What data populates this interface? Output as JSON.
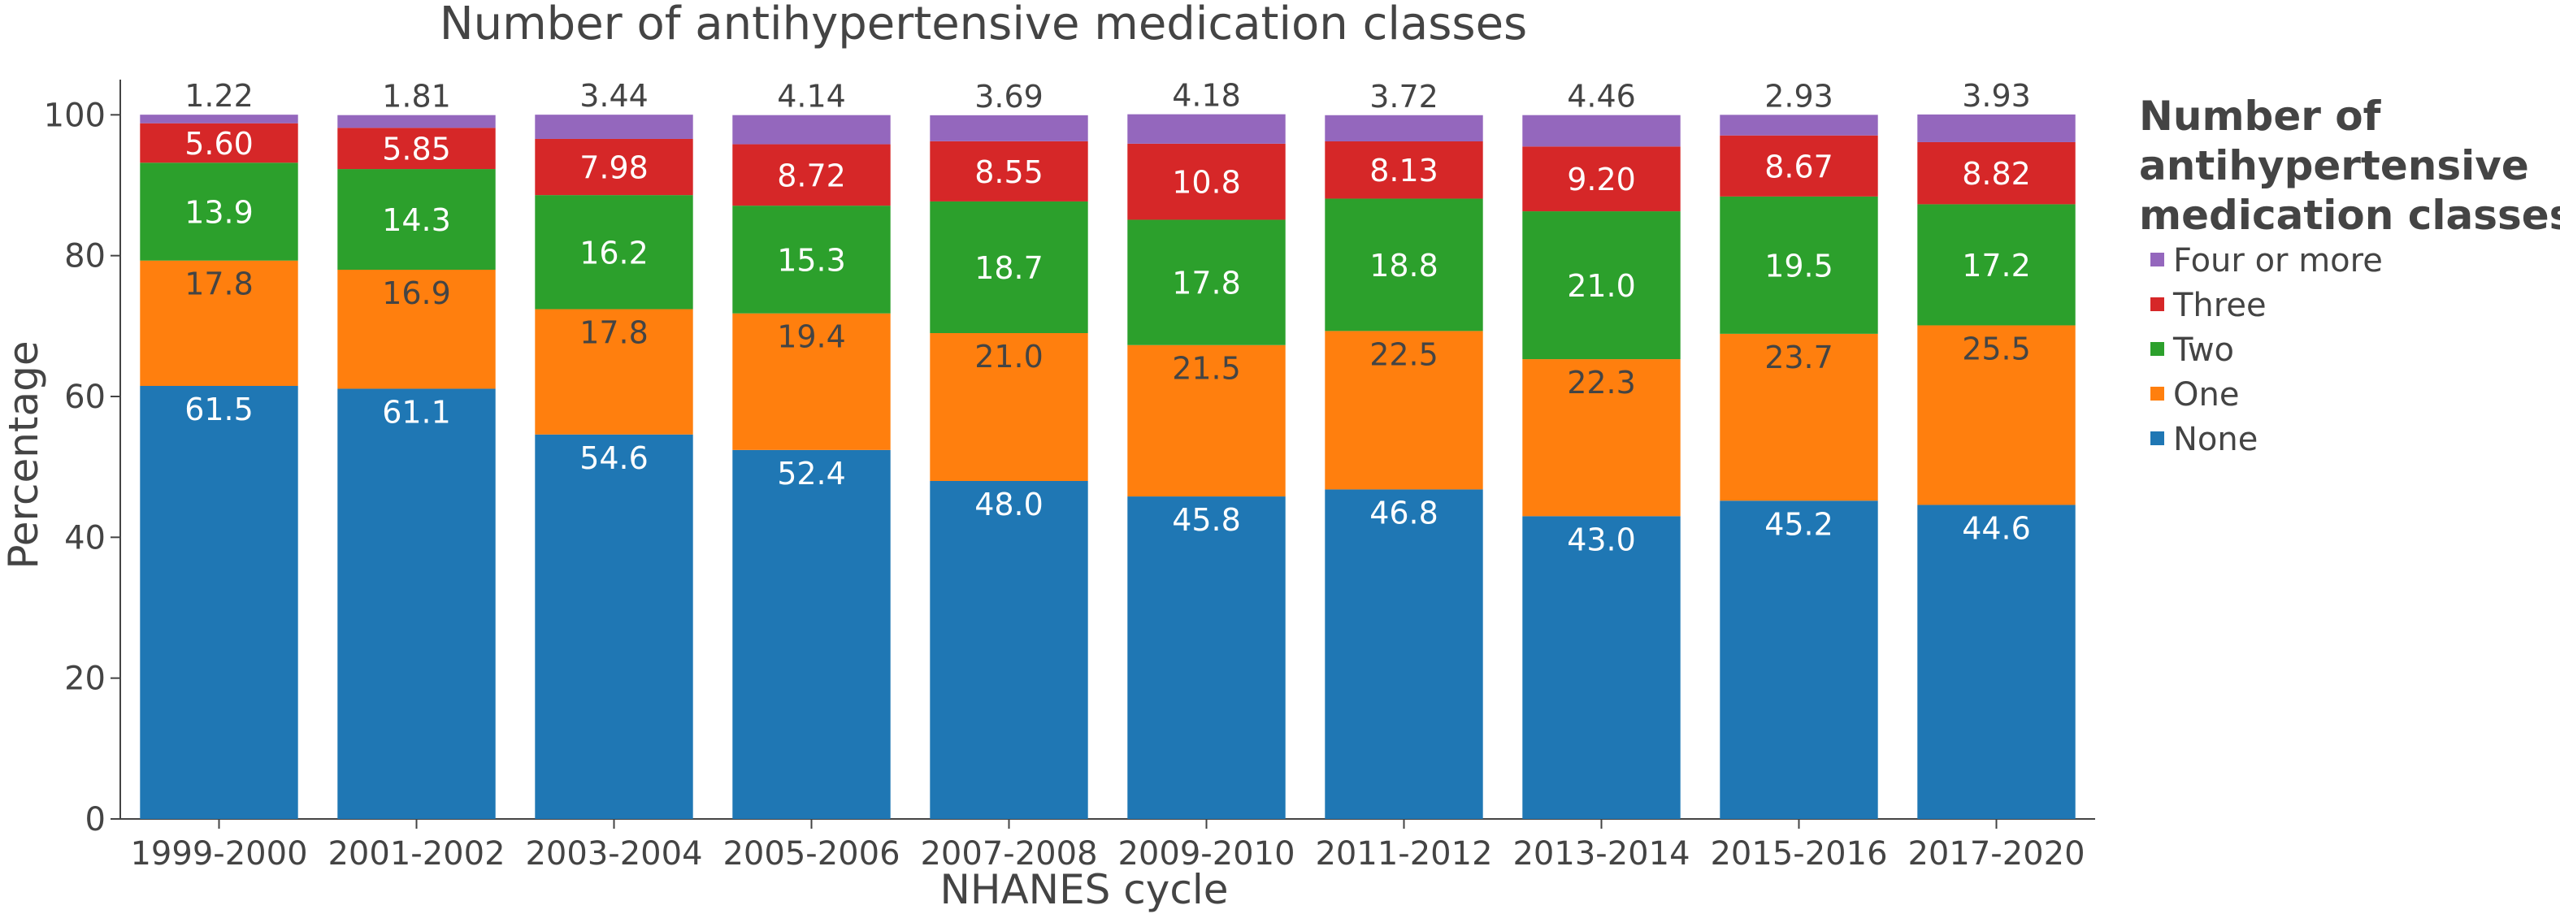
{
  "chart_data": {
    "type": "bar",
    "stacked": true,
    "title": "Number of antihypertensive medication classes",
    "xlabel": "NHANES cycle",
    "ylabel": "Percentage",
    "ylim": [
      0,
      105
    ],
    "yticks": [
      0,
      20,
      40,
      60,
      80,
      100
    ],
    "grid": false,
    "legend_position": "right",
    "legend_title": [
      "Number of",
      "antihypertensive",
      "medication classes"
    ],
    "categories": [
      "1999-2000",
      "2001-2002",
      "2003-2004",
      "2005-2006",
      "2007-2008",
      "2009-2010",
      "2011-2012",
      "2013-2014",
      "2015-2016",
      "2017-2020"
    ],
    "series": [
      {
        "name": "None",
        "color": "#1f77b4",
        "label_color": "#ffffff",
        "values": [
          61.5,
          61.1,
          54.6,
          52.4,
          48.0,
          45.8,
          46.8,
          43.0,
          45.2,
          44.6
        ],
        "labels": [
          "61.5",
          "61.1",
          "54.6",
          "52.4",
          "48.0",
          "45.8",
          "46.8",
          "43.0",
          "45.2",
          "44.6"
        ]
      },
      {
        "name": "One",
        "color": "#ff7f0e",
        "label_color": "#444444",
        "values": [
          17.8,
          16.9,
          17.8,
          19.4,
          21.0,
          21.5,
          22.5,
          22.3,
          23.7,
          25.5
        ],
        "labels": [
          "17.8",
          "16.9",
          "17.8",
          "19.4",
          "21.0",
          "21.5",
          "22.5",
          "22.3",
          "23.7",
          "25.5"
        ]
      },
      {
        "name": "Two",
        "color": "#2ca02c",
        "label_color": "#ffffff",
        "values": [
          13.9,
          14.3,
          16.2,
          15.3,
          18.7,
          17.8,
          18.8,
          21.0,
          19.5,
          17.2
        ],
        "labels": [
          "13.9",
          "14.3",
          "16.2",
          "15.3",
          "18.7",
          "17.8",
          "18.8",
          "21.0",
          "19.5",
          "17.2"
        ]
      },
      {
        "name": "Three",
        "color": "#d62728",
        "label_color": "#ffffff",
        "values": [
          5.6,
          5.85,
          7.98,
          8.72,
          8.55,
          10.8,
          8.13,
          9.2,
          8.67,
          8.82
        ],
        "labels": [
          "5.60",
          "5.85",
          "7.98",
          "8.72",
          "8.55",
          "10.8",
          "8.13",
          "9.20",
          "8.67",
          "8.82"
        ]
      },
      {
        "name": "Four or more",
        "color": "#9467bd",
        "label_color": "#444444",
        "values": [
          1.22,
          1.81,
          3.44,
          4.14,
          3.69,
          4.18,
          3.72,
          4.46,
          2.93,
          3.93
        ],
        "labels": [
          "1.22",
          "1.81",
          "3.44",
          "4.14",
          "3.69",
          "4.18",
          "3.72",
          "4.46",
          "2.93",
          "3.93"
        ]
      }
    ]
  }
}
